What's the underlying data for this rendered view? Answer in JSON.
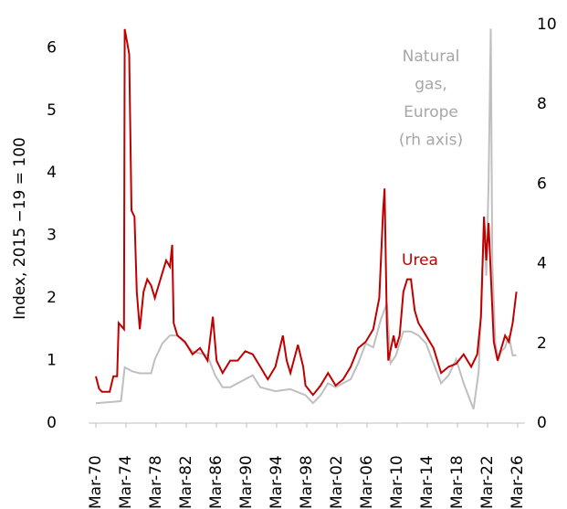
{
  "chart_data": {
    "type": "line",
    "y_label": "Index, 2015 −19 = 100",
    "xlim": [
      1970.17,
      2026.17
    ],
    "xticks": [
      {
        "value": 1970.17,
        "label": "Mar-70"
      },
      {
        "value": 1974.17,
        "label": "Mar-74"
      },
      {
        "value": 1978.17,
        "label": "Mar-78"
      },
      {
        "value": 1982.17,
        "label": "Mar-82"
      },
      {
        "value": 1986.17,
        "label": "Mar-86"
      },
      {
        "value": 1990.17,
        "label": "Mar-90"
      },
      {
        "value": 1994.17,
        "label": "Mar-94"
      },
      {
        "value": 1998.17,
        "label": "Mar-98"
      },
      {
        "value": 2002.17,
        "label": "Mar-02"
      },
      {
        "value": 2006.17,
        "label": "Mar-06"
      },
      {
        "value": 2010.17,
        "label": "Mar-10"
      },
      {
        "value": 2014.17,
        "label": "Mar-14"
      },
      {
        "value": 2018.17,
        "label": "Mar-18"
      },
      {
        "value": 2022.17,
        "label": "Mar-22"
      },
      {
        "value": 2026.17,
        "label": "Mar-26"
      }
    ],
    "ylim": [
      0,
      6.37
    ],
    "yticks": [
      0,
      1,
      2,
      3,
      4,
      5,
      6
    ],
    "y2lim": [
      0,
      10
    ],
    "y2ticks": [
      0,
      2,
      4,
      6,
      8,
      10
    ],
    "grid": false,
    "series": [
      {
        "name": "Urea",
        "color": "#c00000",
        "x": [
          1970.17,
          1970.6,
          1971,
          1972,
          1972.5,
          1973,
          1973.2,
          1973.9,
          1974.0,
          1974.3,
          1974.6,
          1974.9,
          1975.3,
          1975.6,
          1976,
          1976.5,
          1977,
          1977.5,
          1978,
          1978.5,
          1979,
          1979.5,
          1980,
          1980.3,
          1980.5,
          1981,
          1982,
          1983,
          1984,
          1985,
          1985.7,
          1986.2,
          1987,
          1988,
          1989,
          1990,
          1991,
          1992,
          1993,
          1994,
          1995,
          1995.5,
          1996,
          1997,
          1997.7,
          1998,
          1999,
          2000,
          2001,
          2002,
          2003,
          2004,
          2005,
          2006,
          2007,
          2007.8,
          2008.3,
          2008.5,
          2008.8,
          2009,
          2009.7,
          2010,
          2010.5,
          2011,
          2011.5,
          2012,
          2012.5,
          2013,
          2014,
          2015,
          2016,
          2017,
          2018,
          2019,
          2020,
          2020.8,
          2021.3,
          2021.7,
          2022.0,
          2022.3,
          2022.7,
          2023,
          2023.5,
          2024,
          2024.5,
          2025,
          2025.5,
          2026
        ],
        "values": [
          0.75,
          0.55,
          0.5,
          0.5,
          0.75,
          0.75,
          1.6,
          1.5,
          6.3,
          6.1,
          5.9,
          3.4,
          3.3,
          2.1,
          1.5,
          2.1,
          2.3,
          2.2,
          2.0,
          2.2,
          2.4,
          2.6,
          2.5,
          2.85,
          1.6,
          1.4,
          1.3,
          1.1,
          1.2,
          1.0,
          1.7,
          1.0,
          0.8,
          1.0,
          1.0,
          1.15,
          1.1,
          0.9,
          0.7,
          0.9,
          1.4,
          1.0,
          0.8,
          1.25,
          0.9,
          0.6,
          0.45,
          0.6,
          0.8,
          0.6,
          0.7,
          0.9,
          1.2,
          1.3,
          1.5,
          2.0,
          3.4,
          3.75,
          1.6,
          1.0,
          1.4,
          1.2,
          1.4,
          2.1,
          2.3,
          2.3,
          1.8,
          1.6,
          1.4,
          1.2,
          0.8,
          0.9,
          0.95,
          1.1,
          0.9,
          1.1,
          1.7,
          3.3,
          2.6,
          3.2,
          2.1,
          1.3,
          1.0,
          1.2,
          1.4,
          1.3,
          1.6,
          2.1
        ]
      },
      {
        "label_lines": [
          "Natural",
          "gas,",
          "Europe",
          "(rh axis)"
        ],
        "color": "#bfbfbf",
        "axis": "y2",
        "x": [
          1970.17,
          1973.5,
          1974,
          1975,
          1976,
          1977.5,
          1978,
          1979,
          1980,
          1981,
          1982,
          1983,
          1985,
          1986,
          1987,
          1988,
          1990,
          1991,
          1992,
          1994,
          1996,
          1998,
          1999,
          2000,
          2001,
          2002,
          2003,
          2004,
          2005,
          2006,
          2007,
          2008,
          2008.8,
          2009.3,
          2010,
          2011,
          2012,
          2013,
          2014,
          2015,
          2016,
          2017,
          2018,
          2019,
          2020.3,
          2021,
          2021.7,
          2022.0,
          2022.3,
          2022.6,
          2022.8,
          2023.2,
          2023.6,
          2024,
          2024.5,
          2025,
          2025.5,
          2026
        ],
        "values": [
          0.5,
          0.55,
          1.4,
          1.3,
          1.25,
          1.25,
          1.6,
          2.0,
          2.2,
          2.2,
          2.0,
          1.8,
          1.7,
          1.2,
          0.9,
          0.9,
          1.1,
          1.2,
          0.9,
          0.8,
          0.85,
          0.7,
          0.5,
          0.7,
          1.0,
          0.9,
          1.0,
          1.1,
          1.5,
          2.0,
          1.9,
          2.6,
          3.0,
          1.5,
          1.7,
          2.3,
          2.3,
          2.2,
          2.0,
          1.5,
          1.0,
          1.2,
          1.6,
          1.0,
          0.35,
          1.3,
          5.0,
          3.7,
          6.0,
          9.9,
          4.0,
          2.0,
          1.6,
          1.8,
          1.9,
          2.2,
          1.7,
          1.7
        ]
      }
    ]
  }
}
